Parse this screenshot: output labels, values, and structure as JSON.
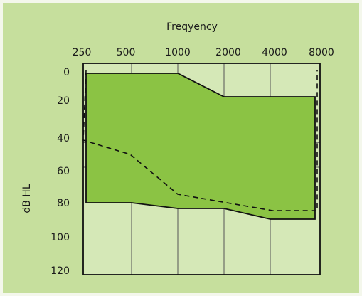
{
  "colors": {
    "page_background": "#c6df9d",
    "frame_border": "#f4f7ec",
    "plot_background": "#d5e8b7",
    "band_fill": "#8bc344",
    "line_color": "#111111",
    "text_color": "#1a1a1a"
  },
  "chart_data": {
    "type": "area",
    "title": "Freqyency",
    "xlabel": "",
    "ylabel": "dB HL",
    "x_scale": "log2",
    "x_ticks": [
      250,
      500,
      1000,
      2000,
      4000,
      8000
    ],
    "x_tick_labels": [
      "250",
      "500",
      "1000",
      "2000",
      "4000",
      "8000"
    ],
    "y_ticks": [
      0,
      20,
      40,
      60,
      80,
      100,
      120
    ],
    "y_tick_labels": [
      "0",
      "20",
      "40",
      "60",
      "80",
      "100",
      "120"
    ],
    "ylim": [
      0,
      120
    ],
    "y_inverted": true,
    "grid": true,
    "band": {
      "x": [
        250,
        1000,
        2000,
        8000,
        8000,
        4000,
        2000,
        1000,
        500,
        250
      ],
      "y": [
        0,
        0,
        18,
        18,
        90,
        90,
        84,
        84,
        80,
        80
      ]
    },
    "series": [
      {
        "style": "dashed",
        "x": [
          250,
          250,
          500,
          1000,
          2000,
          4000,
          8000,
          8000
        ],
        "y": [
          0,
          42,
          52,
          76,
          80,
          85,
          85,
          0
        ]
      }
    ]
  }
}
